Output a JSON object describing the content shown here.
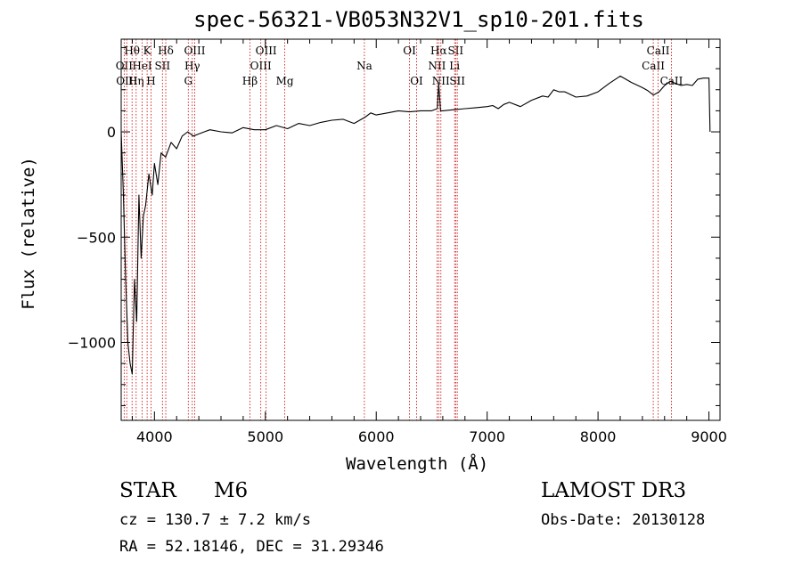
{
  "chart_data": {
    "type": "line",
    "title": "spec-56321-VB053N32V1_sp10-201.fits",
    "xlabel": "Wavelength (Å)",
    "ylabel": "Flux (relative)",
    "xlim": [
      3700,
      9100
    ],
    "ylim": [
      -1370,
      440
    ],
    "x_ticks": [
      4000,
      5000,
      6000,
      7000,
      8000,
      9000
    ],
    "x_tick_labels": [
      "4000",
      "5000",
      "6000",
      "7000",
      "8000",
      "9000"
    ],
    "y_ticks": [
      0,
      -500,
      -1000
    ],
    "y_tick_labels": [
      "0",
      "−500",
      "−1000"
    ],
    "series": [
      {
        "name": "flux",
        "x": [
          3700,
          3720,
          3740,
          3760,
          3780,
          3800,
          3820,
          3840,
          3860,
          3880,
          3900,
          3920,
          3950,
          3980,
          4000,
          4030,
          4060,
          4100,
          4150,
          4200,
          4250,
          4300,
          4350,
          4400,
          4450,
          4500,
          4600,
          4700,
          4800,
          4900,
          5000,
          5100,
          5200,
          5300,
          5400,
          5500,
          5600,
          5700,
          5800,
          5900,
          5950,
          6000,
          6100,
          6200,
          6300,
          6400,
          6500,
          6550,
          6563,
          6580,
          6600,
          6700,
          6800,
          6900,
          7000,
          7050,
          7100,
          7150,
          7200,
          7300,
          7400,
          7500,
          7550,
          7600,
          7650,
          7700,
          7800,
          7900,
          8000,
          8100,
          8200,
          8250,
          8300,
          8400,
          8450,
          8500,
          8550,
          8600,
          8650,
          8700,
          8750,
          8800,
          8850,
          8900,
          8950,
          9000,
          9010
        ],
        "y": [
          0,
          -300,
          -700,
          -1000,
          -1100,
          -1150,
          -700,
          -900,
          -300,
          -600,
          -400,
          -350,
          -200,
          -300,
          -150,
          -250,
          -100,
          -120,
          -50,
          -80,
          -20,
          0,
          -20,
          -10,
          0,
          10,
          0,
          -5,
          20,
          10,
          10,
          30,
          15,
          40,
          30,
          45,
          55,
          60,
          40,
          70,
          90,
          80,
          90,
          100,
          95,
          100,
          100,
          110,
          230,
          100,
          100,
          105,
          110,
          115,
          120,
          125,
          110,
          130,
          140,
          120,
          150,
          170,
          165,
          200,
          190,
          190,
          165,
          170,
          190,
          230,
          265,
          250,
          235,
          210,
          195,
          175,
          190,
          220,
          240,
          230,
          220,
          225,
          220,
          250,
          255,
          255,
          0
        ]
      }
    ],
    "spectral_lines": [
      {
        "label": "OII",
        "wavelength": 3727,
        "row": 1
      },
      {
        "label": "OIII",
        "wavelength": 3750,
        "row": 2
      },
      {
        "label": "Hθ",
        "wavelength": 3798,
        "row": 0
      },
      {
        "label": "Hη",
        "wavelength": 3835,
        "row": 2
      },
      {
        "label": "HeI",
        "wavelength": 3889,
        "row": 1
      },
      {
        "label": "K",
        "wavelength": 3934,
        "row": 0
      },
      {
        "label": "H",
        "wavelength": 3969,
        "row": 2
      },
      {
        "label": "SII",
        "wavelength": 4072,
        "row": 1
      },
      {
        "label": "Hδ",
        "wavelength": 4102,
        "row": 0
      },
      {
        "label": "G",
        "wavelength": 4305,
        "row": 2
      },
      {
        "label": "Hγ",
        "wavelength": 4341,
        "row": 1
      },
      {
        "label": "OIII",
        "wavelength": 4363,
        "row": 0
      },
      {
        "label": "Hβ",
        "wavelength": 4861,
        "row": 2
      },
      {
        "label": "OIII",
        "wavelength": 4959,
        "row": 1
      },
      {
        "label": "OIII",
        "wavelength": 5007,
        "row": 0
      },
      {
        "label": "Mg",
        "wavelength": 5175,
        "row": 2
      },
      {
        "label": "Na",
        "wavelength": 5893,
        "row": 1
      },
      {
        "label": "OI",
        "wavelength": 6300,
        "row": 0
      },
      {
        "label": "OI",
        "wavelength": 6364,
        "row": 2
      },
      {
        "label": "NII",
        "wavelength": 6548,
        "row": 1
      },
      {
        "label": "Hα",
        "wavelength": 6563,
        "row": 0
      },
      {
        "label": "NII",
        "wavelength": 6583,
        "row": 2
      },
      {
        "label": "Li",
        "wavelength": 6707,
        "row": 1
      },
      {
        "label": "SII",
        "wavelength": 6716,
        "row": 0
      },
      {
        "label": "SII",
        "wavelength": 6731,
        "row": 2
      },
      {
        "label": "CaII",
        "wavelength": 8498,
        "row": 1
      },
      {
        "label": "CaII",
        "wavelength": 8542,
        "row": 0
      },
      {
        "label": "CaII",
        "wavelength": 8662,
        "row": 2
      }
    ],
    "grid": false,
    "legend": "none"
  },
  "info": {
    "object_class": "STAR",
    "subclass": "M6",
    "survey": "LAMOST DR3",
    "cz": "cz = 130.7 ± 7.2 km/s",
    "obs_date": "Obs-Date: 20130128",
    "coords": "RA =  52.18146, DEC =  31.29346"
  },
  "colors": {
    "spectrum": "#000000",
    "line_markers": "#cc0000",
    "axes": "#000000",
    "background": "#ffffff"
  }
}
